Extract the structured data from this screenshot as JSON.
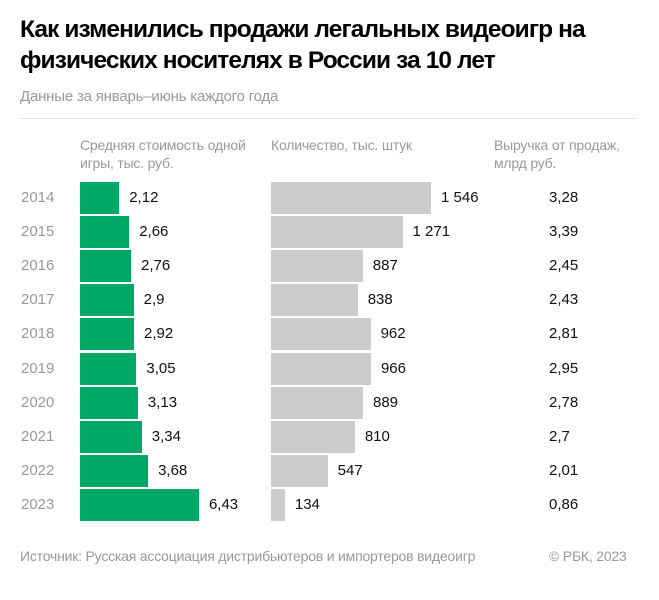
{
  "title": "Как изменились продажи легальных видеоигр на физических носителях в России за 10 лет",
  "subtitle": "Данные за январь–июнь каждого года",
  "source": "Источник: Русская ассоциация дистрибьютеров и импортеров видеоигр",
  "copyright": "© РБК, 2023",
  "colors": {
    "price_bar": "#00a865",
    "quantity_bar": "#cccccc"
  },
  "chart_data": {
    "type": "table",
    "categories": [
      "2014",
      "2015",
      "2016",
      "2017",
      "2018",
      "2019",
      "2020",
      "2021",
      "2022",
      "2023"
    ],
    "columns": [
      {
        "header": "Средняя стоимость одной игры, тыс. руб.",
        "display": "bar",
        "values": [
          2.12,
          2.66,
          2.76,
          2.9,
          2.92,
          3.05,
          3.13,
          3.34,
          3.68,
          6.43
        ],
        "labels": [
          "2,12",
          "2,66",
          "2,76",
          "2,9",
          "2,92",
          "3,05",
          "3,13",
          "3,34",
          "3,68",
          "6,43"
        ]
      },
      {
        "header": "Количество, тыс. штук",
        "display": "bar",
        "values": [
          1546,
          1271,
          887,
          838,
          962,
          966,
          889,
          810,
          547,
          134
        ],
        "labels": [
          "1 546",
          "1 271",
          "887",
          "838",
          "962",
          "966",
          "889",
          "810",
          "547",
          "134"
        ]
      },
      {
        "header": "Выручка от продаж, млрд руб.",
        "display": "text",
        "values": [
          3.28,
          3.39,
          2.45,
          2.43,
          2.81,
          2.95,
          2.78,
          2.7,
          2.01,
          0.86
        ],
        "labels": [
          "3,28",
          "3,39",
          "2,45",
          "2,43",
          "2,81",
          "2,95",
          "2,78",
          "2,7",
          "2,01",
          "0,86"
        ]
      }
    ]
  }
}
